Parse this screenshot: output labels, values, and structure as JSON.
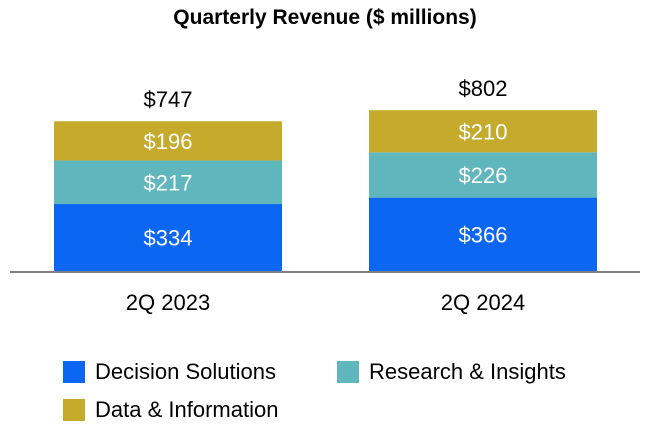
{
  "chart_data": {
    "type": "stacked-bar",
    "title": "Quarterly Revenue ($ millions)",
    "categories": [
      "2Q 2023",
      "2Q 2024"
    ],
    "series": [
      {
        "name": "Decision Solutions",
        "color": "#0B66F2",
        "values": [
          334,
          366
        ],
        "labels": [
          "$334",
          "$366"
        ]
      },
      {
        "name": "Research & Insights",
        "color": "#5FB6BC",
        "values": [
          217,
          226
        ],
        "labels": [
          "$217",
          "$226"
        ]
      },
      {
        "name": "Data & Information",
        "color": "#C5AA2C",
        "values": [
          196,
          210
        ],
        "labels": [
          "$196",
          "$210"
        ]
      }
    ],
    "totals": [
      747,
      802
    ],
    "total_labels": [
      "$747",
      "$802"
    ],
    "ylim": [
      0,
      850
    ],
    "legend_position": "bottom"
  }
}
